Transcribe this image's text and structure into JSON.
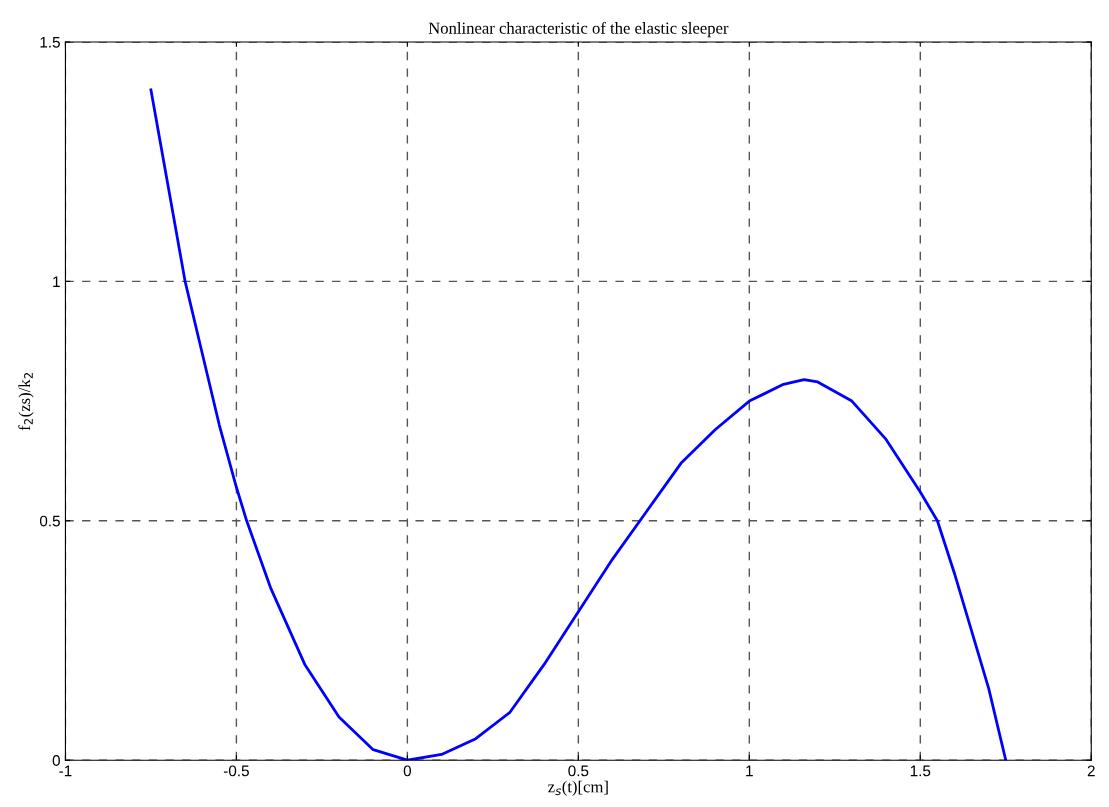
{
  "chart_data": {
    "type": "line",
    "title": "Nonlinear characteristic of the elastic sleeper",
    "xlabel": "z$_{s}$(t)[cm]",
    "ylabel": "f$_{2}$(zs)/k$_{2}$",
    "x": [
      -0.75,
      -0.7,
      -0.65,
      -0.6,
      -0.55,
      -0.5,
      -0.47,
      -0.4,
      -0.3,
      -0.2,
      -0.1,
      0,
      0.1,
      0.2,
      0.3,
      0.4,
      0.5,
      0.6,
      0.7,
      0.8,
      0.9,
      1.0,
      1.1,
      1.16,
      1.2,
      1.3,
      1.4,
      1.5,
      1.55,
      1.6,
      1.7,
      1.75
    ],
    "series": [
      {
        "color": "#0000ff",
        "values": [
          1.4,
          1.2,
          1.0,
          0.85,
          0.7,
          0.57,
          0.5,
          0.36,
          0.2,
          0.09,
          0.022,
          0,
          0.012,
          0.045,
          0.1,
          0.2,
          0.31,
          0.42,
          0.52,
          0.62,
          0.69,
          0.75,
          0.785,
          0.795,
          0.79,
          0.75,
          0.67,
          0.56,
          0.5,
          0.39,
          0.15,
          0
        ]
      }
    ],
    "xlim": [
      -1,
      2
    ],
    "ylim": [
      0,
      1.5
    ],
    "xticks": [
      -1,
      -0.5,
      0,
      0.5,
      1,
      1.5,
      2
    ],
    "yticks": [
      0,
      0.5,
      1,
      1.5
    ],
    "grid": true,
    "line_style": "solid",
    "marker": "none"
  }
}
